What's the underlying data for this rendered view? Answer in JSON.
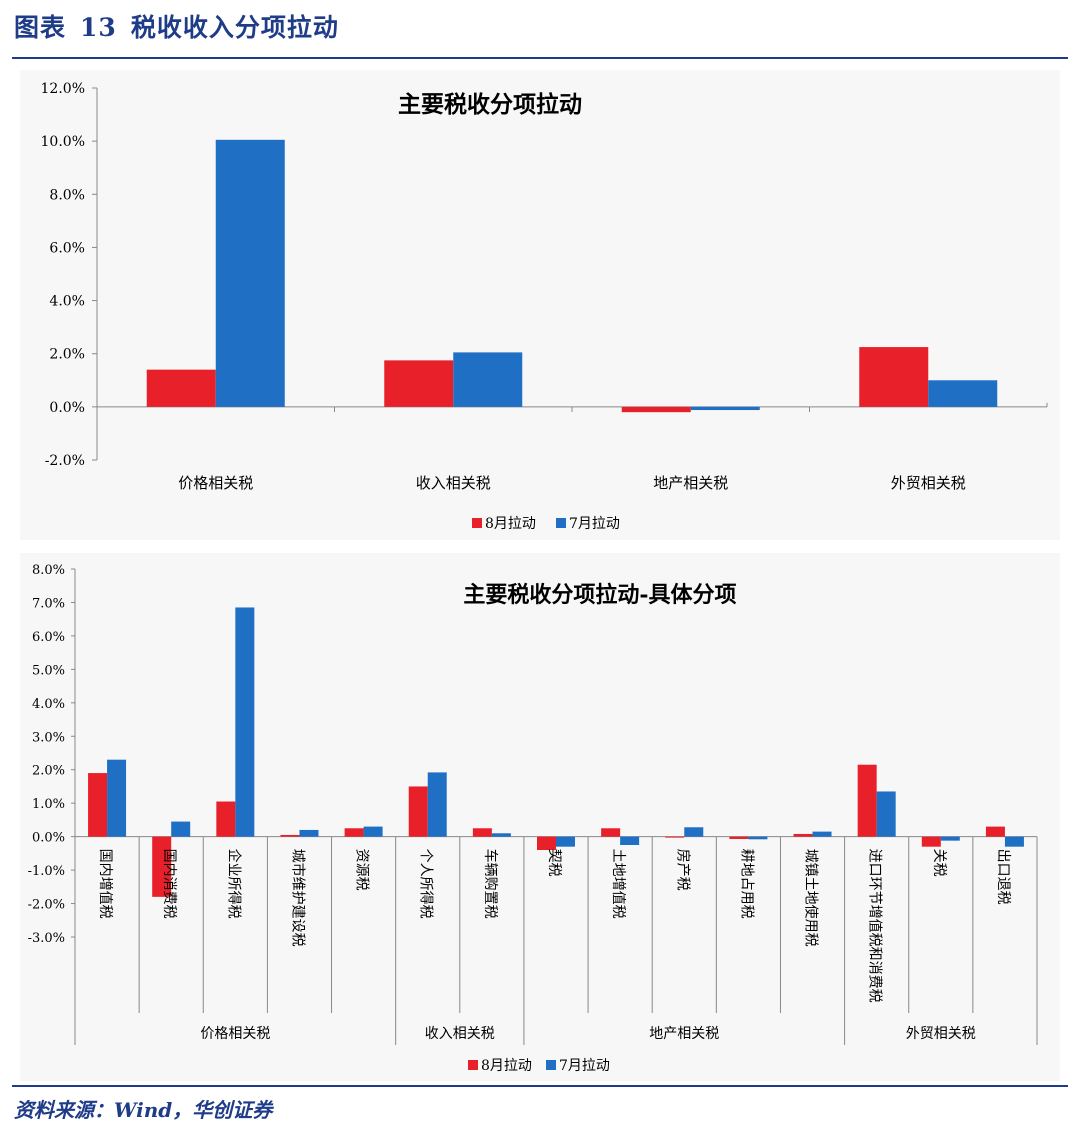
{
  "figure": {
    "label": "图表",
    "number": "13",
    "title": "税收收入分项拉动",
    "source": "资料来源：Wind，华创证券"
  },
  "colors": {
    "s8": "#e8202a",
    "s7": "#1f6fc4",
    "rule": "#1f3c88"
  },
  "chart_data": [
    {
      "type": "bar",
      "title": "主要税收分项拉动",
      "categories": [
        "价格相关税",
        "收入相关税",
        "地产相关税",
        "外贸相关税"
      ],
      "series": [
        {
          "name": "8月拉动",
          "values": [
            1.4,
            1.75,
            -0.2,
            2.25
          ]
        },
        {
          "name": "7月拉动",
          "values": [
            10.05,
            2.05,
            -0.12,
            1.0
          ]
        }
      ],
      "ylim": [
        -2.0,
        12.0
      ],
      "yticks": [
        "12.0%",
        "10.0%",
        "8.0%",
        "6.0%",
        "4.0%",
        "2.0%",
        "0.0%",
        "-2.0%"
      ],
      "legend_position": "bottom"
    },
    {
      "type": "bar",
      "title": "主要税收分项拉动-具体分项",
      "categories": [
        "国内增值税",
        "国内消费税",
        "企业所得税",
        "城市维护建设税",
        "资源税",
        "个人所得税",
        "车辆购置税",
        "契税",
        "土地增值税",
        "房产税",
        "耕地占用税",
        "城镇土地使用税",
        "进口环节增值税和消费税",
        "关税",
        "出口退税"
      ],
      "groups": [
        {
          "name": "价格相关税",
          "count": 5
        },
        {
          "name": "收入相关税",
          "count": 2
        },
        {
          "name": "地产相关税",
          "count": 5
        },
        {
          "name": "外贸相关税",
          "count": 3
        }
      ],
      "series": [
        {
          "name": "8月拉动",
          "values": [
            1.9,
            -1.8,
            1.05,
            0.05,
            0.25,
            1.5,
            0.25,
            -0.4,
            0.25,
            0.0,
            -0.07,
            0.08,
            2.15,
            -0.3,
            0.3
          ]
        },
        {
          "name": "7月拉动",
          "values": [
            2.3,
            0.45,
            6.85,
            0.2,
            0.3,
            1.92,
            0.1,
            -0.3,
            -0.25,
            0.28,
            -0.08,
            0.15,
            1.35,
            -0.12,
            -0.3
          ]
        }
      ],
      "ylim": [
        -3.0,
        8.0
      ],
      "yticks": [
        "8.0%",
        "7.0%",
        "6.0%",
        "5.0%",
        "4.0%",
        "3.0%",
        "2.0%",
        "1.0%",
        "0.0%",
        "-1.0%",
        "-2.0%",
        "-3.0%"
      ],
      "legend_position": "bottom"
    }
  ]
}
